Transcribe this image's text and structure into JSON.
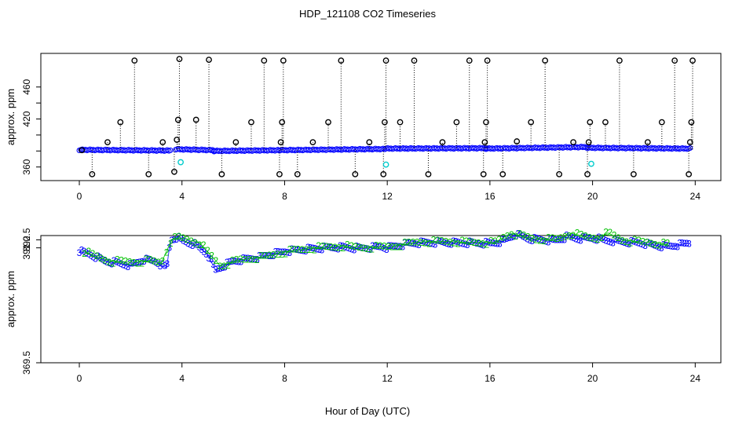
{
  "title": "HDP_121108  CO2 Timeseries",
  "xlabel": "Hour of Day (UTC)",
  "colors": {
    "blue": "#0000ff",
    "green": "#00c000",
    "cyan": "#00cccc",
    "black": "#000000"
  },
  "chart_data": [
    {
      "type": "scatter",
      "ylabel": "approx. ppm",
      "xlim": [
        -1.5,
        25.0
      ],
      "ylim": [
        343,
        502
      ],
      "xticks": [
        0,
        4,
        8,
        12,
        16,
        20,
        24
      ],
      "yticks": [
        360,
        380,
        400,
        420,
        440,
        460
      ],
      "ytick_labels": [
        "360",
        "",
        "",
        "420",
        "",
        "460"
      ],
      "baseline_segments": [
        {
          "x": [
            0.0,
            3.55
          ],
          "y": [
            381.5,
            380.5
          ]
        },
        {
          "x": [
            3.75,
            5.25
          ],
          "y": [
            382.2,
            381.0
          ]
        },
        {
          "x": [
            5.25,
            7.8
          ],
          "y": [
            380.0,
            381.0
          ]
        },
        {
          "x": [
            7.8,
            11.9
          ],
          "y": [
            381.0,
            382.5
          ]
        },
        {
          "x": [
            11.9,
            15.85
          ],
          "y": [
            383.0,
            383.5
          ]
        },
        {
          "x": [
            15.85,
            19.8
          ],
          "y": [
            383.0,
            385.0
          ]
        },
        {
          "x": [
            19.8,
            23.8
          ],
          "y": [
            384.0,
            383.0
          ]
        }
      ],
      "outliers": {
        "x": [
          0.1,
          0.5,
          1.1,
          1.6,
          2.15,
          2.7,
          3.25,
          3.7,
          3.8,
          3.85,
          3.9,
          4.55,
          5.05,
          5.55,
          6.1,
          6.7,
          7.2,
          7.8,
          7.85,
          7.9,
          7.95,
          8.5,
          9.1,
          9.7,
          10.2,
          10.75,
          11.3,
          11.85,
          11.9,
          11.95,
          12.5,
          13.05,
          13.6,
          14.15,
          14.7,
          15.2,
          15.75,
          15.8,
          15.85,
          15.9,
          16.5,
          17.05,
          17.6,
          18.15,
          18.7,
          19.25,
          19.8,
          19.85,
          19.9,
          20.5,
          21.05,
          21.6,
          22.15,
          22.7,
          23.2,
          23.75,
          23.8,
          23.85,
          23.9
        ],
        "y": [
          381,
          351,
          391,
          416,
          493,
          351,
          391,
          354,
          394,
          419,
          495,
          419,
          494,
          351,
          391,
          416,
          493,
          351,
          391,
          416,
          493,
          351,
          391,
          416,
          493,
          351,
          391,
          351,
          416,
          493,
          416,
          493,
          351,
          391,
          416,
          493,
          351,
          391,
          416,
          493,
          351,
          392,
          416,
          493,
          351,
          391,
          351,
          391,
          416,
          416,
          493,
          351,
          391,
          416,
          493,
          351,
          391,
          416,
          493
        ]
      },
      "calibration": {
        "x": [
          3.95,
          11.95,
          19.95
        ],
        "y": [
          366,
          363,
          364
        ]
      }
    },
    {
      "type": "scatter",
      "ylabel": "approx. ppm",
      "xlim": [
        -1.5,
        25.0
      ],
      "ylim": [
        369.5,
        393.3
      ],
      "xticks": [
        0,
        4,
        8,
        12,
        16,
        20,
        24
      ],
      "yticks": [
        369.5,
        391.0,
        392.5
      ],
      "ytick_labels": [
        "369.5",
        "391.0",
        "392.5"
      ],
      "series": [
        {
          "name": "3",
          "color": "#0000ff",
          "x": [
            0.0,
            0.5,
            1.0,
            1.5,
            2.0,
            2.5,
            3.0,
            3.4,
            3.55,
            3.8,
            4.0,
            4.5,
            5.0,
            5.3,
            6.0,
            7.0,
            8.0,
            9.0,
            10.0,
            11.0,
            11.8,
            12.0,
            13.0,
            14.0,
            15.0,
            16.0,
            16.5,
            17.0,
            17.5,
            18.0,
            18.5,
            19.0,
            19.5,
            20.0,
            20.3,
            20.6,
            21.0,
            22.0,
            22.8,
            23.3,
            23.8
          ],
          "y": [
            390.4,
            389.6,
            388.5,
            388.1,
            387.7,
            388.8,
            388.4,
            387.2,
            392.4,
            393.0,
            392.3,
            391.6,
            389.8,
            386.8,
            388.5,
            389.2,
            390.3,
            390.8,
            391.1,
            390.9,
            391.2,
            391.0,
            391.9,
            392.0,
            391.9,
            391.8,
            392.2,
            393.5,
            392.7,
            392.5,
            392.3,
            393.0,
            392.7,
            392.8,
            392.6,
            392.3,
            392.2,
            391.8,
            391.2,
            391.5,
            391.9
          ]
        },
        {
          "name": "2",
          "color": "#00c000",
          "x": [
            0.2,
            0.7,
            1.2,
            1.7,
            2.2,
            2.7,
            3.2,
            3.6,
            3.9,
            4.2,
            4.7,
            5.5,
            6.2,
            7.2,
            8.2,
            9.2,
            10.2,
            11.2,
            12.2,
            13.2,
            14.2,
            15.2,
            16.2,
            16.8,
            17.8,
            18.6,
            19.2,
            19.8,
            20.2,
            20.6,
            21.2,
            22.2,
            23.0
          ],
          "y": [
            390.3,
            389.3,
            388.5,
            388.4,
            388.3,
            388.6,
            388.2,
            392.6,
            392.9,
            392.6,
            391.9,
            387.6,
            388.7,
            389.3,
            390.4,
            391.0,
            391.3,
            391.0,
            391.3,
            392.1,
            392.2,
            392.0,
            392.0,
            393.7,
            392.6,
            392.6,
            393.7,
            393.0,
            392.8,
            393.8,
            392.4,
            392.0,
            391.6
          ]
        }
      ]
    }
  ]
}
